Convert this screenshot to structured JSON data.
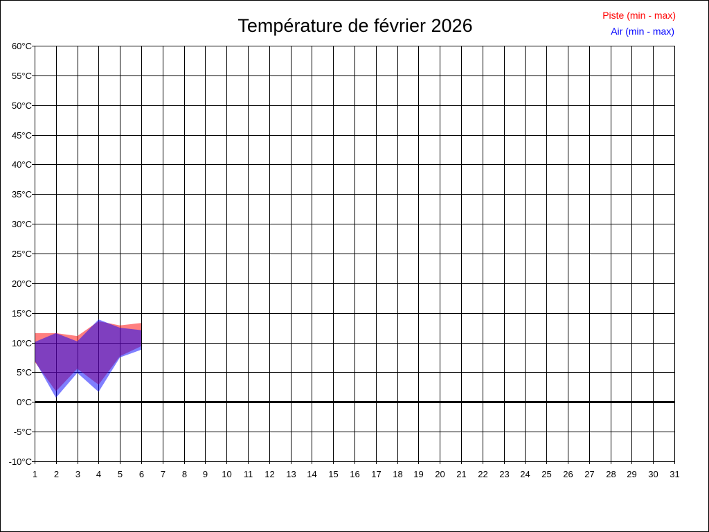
{
  "chart_data": {
    "type": "area",
    "title": "Température de février 2026",
    "xlabel": "",
    "ylabel": "",
    "xlim": [
      1,
      31
    ],
    "ylim": [
      -10,
      60
    ],
    "x_ticks": [
      1,
      2,
      3,
      4,
      5,
      6,
      7,
      8,
      9,
      10,
      11,
      12,
      13,
      14,
      15,
      16,
      17,
      18,
      19,
      20,
      21,
      22,
      23,
      24,
      25,
      26,
      27,
      28,
      29,
      30,
      31
    ],
    "x_tick_labels": [
      "1",
      "2",
      "3",
      "4",
      "5",
      "6",
      "7",
      "8",
      "9",
      "10",
      "11",
      "12",
      "13",
      "14",
      "15",
      "16",
      "17",
      "18",
      "19",
      "20",
      "21",
      "22",
      "23",
      "24",
      "25",
      "26",
      "27",
      "28",
      "29",
      "30",
      "31"
    ],
    "y_ticks": [
      60,
      55,
      50,
      45,
      40,
      35,
      30,
      25,
      20,
      15,
      10,
      5,
      0,
      -5,
      -10
    ],
    "y_tick_labels": [
      "60°C",
      "55°C",
      "50°C",
      "45°C",
      "40°C",
      "35°C",
      "30°C",
      "25°C",
      "20°C",
      "15°C",
      "10°C",
      "5°C",
      "0°C",
      "-5°C",
      "-10°C"
    ],
    "grid": true,
    "zero_line": true,
    "legend_position": "top-right",
    "series": [
      {
        "name": "Piste (min - max)",
        "color": "#ff0000",
        "x": [
          1,
          2,
          3,
          4,
          5,
          6
        ],
        "min": [
          6.8,
          1.8,
          5.6,
          2.9,
          7.7,
          9.4
        ],
        "max": [
          11.6,
          11.6,
          11.1,
          13.6,
          12.9,
          13.3
        ]
      },
      {
        "name": "Air (min - max)",
        "color": "#0000ff",
        "x": [
          1,
          2,
          3,
          4,
          5,
          6
        ],
        "min": [
          7.0,
          0.7,
          4.9,
          1.7,
          7.5,
          8.8
        ],
        "max": [
          10.1,
          11.6,
          10.2,
          13.9,
          12.5,
          12.1
        ]
      }
    ]
  }
}
